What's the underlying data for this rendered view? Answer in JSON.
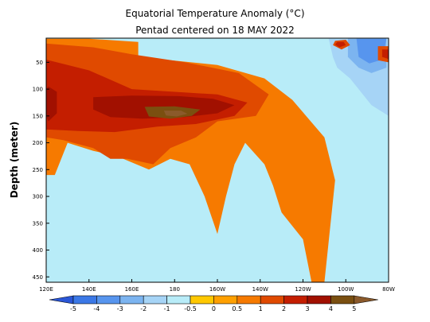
{
  "chart_data": {
    "type": "heatmap",
    "title": "Equatorial Temperature Anomaly (°C)",
    "subtitle": "Pentad centered on 18 MAY 2022",
    "ylabel": "Depth (meter)",
    "xlabel": "",
    "x_ticks": [
      "120E",
      "140E",
      "160E",
      "180",
      "160W",
      "140W",
      "120W",
      "100W",
      "80W"
    ],
    "x_tick_values": [
      120,
      140,
      160,
      180,
      200,
      220,
      240,
      260,
      280
    ],
    "y_ticks": [
      "50",
      "100",
      "150",
      "200",
      "250",
      "300",
      "350",
      "400",
      "450"
    ],
    "y_tick_values": [
      50,
      100,
      150,
      200,
      250,
      300,
      350,
      400,
      450
    ],
    "xlim": [
      120,
      280
    ],
    "ylim": [
      460,
      5
    ],
    "grid": false,
    "colorbar": {
      "labels": [
        "-5",
        "-4",
        "-3",
        "-2",
        "-1",
        "-0.5",
        "0",
        "0.5",
        "1",
        "2",
        "3",
        "4",
        "5"
      ],
      "values": [
        -5,
        -4,
        -3,
        -2,
        -1,
        -0.5,
        0,
        0.5,
        1,
        2,
        3,
        4,
        5
      ],
      "colors": [
        "#2a56d6",
        "#3b78e6",
        "#5795ee",
        "#7cb4f0",
        "#a6d4f6",
        "#b8ecf8",
        "#ffc800",
        "#ffa000",
        "#f67a00",
        "#e04a00",
        "#c41e00",
        "#a11000",
        "#7a4f10",
        "#8b5a2b"
      ]
    },
    "regions": [
      {
        "anomaly": 0.5,
        "polygon": [
          [
            120,
            6
          ],
          [
            140,
            6
          ],
          [
            163,
            12
          ],
          [
            163,
            40
          ],
          [
            200,
            55
          ],
          [
            222,
            80
          ],
          [
            235,
            120
          ],
          [
            250,
            190
          ],
          [
            255,
            270
          ],
          [
            250,
            460
          ],
          [
            244,
            460
          ],
          [
            240,
            380
          ],
          [
            230,
            330
          ],
          [
            226,
            280
          ],
          [
            222,
            240
          ],
          [
            213,
            200
          ],
          [
            208,
            240
          ],
          [
            204,
            300
          ],
          [
            200,
            370
          ],
          [
            194,
            300
          ],
          [
            187,
            240
          ],
          [
            178,
            230
          ],
          [
            168,
            250
          ],
          [
            153,
            225
          ],
          [
            142,
            215
          ],
          [
            130,
            200
          ],
          [
            124,
            260
          ],
          [
            120,
            260
          ]
        ]
      },
      {
        "anomaly": 1,
        "polygon": [
          [
            120,
            15
          ],
          [
            142,
            22
          ],
          [
            160,
            35
          ],
          [
            185,
            50
          ],
          [
            210,
            70
          ],
          [
            224,
            110
          ],
          [
            218,
            150
          ],
          [
            200,
            160
          ],
          [
            190,
            190
          ],
          [
            178,
            210
          ],
          [
            170,
            240
          ],
          [
            158,
            230
          ],
          [
            150,
            230
          ],
          [
            142,
            210
          ],
          [
            128,
            195
          ],
          [
            120,
            190
          ]
        ]
      },
      {
        "anomaly": 2,
        "polygon": [
          [
            120,
            45
          ],
          [
            140,
            65
          ],
          [
            160,
            100
          ],
          [
            180,
            105
          ],
          [
            200,
            110
          ],
          [
            214,
            125
          ],
          [
            208,
            150
          ],
          [
            190,
            165
          ],
          [
            172,
            170
          ],
          [
            152,
            180
          ],
          [
            135,
            178
          ],
          [
            120,
            175
          ]
        ]
      },
      {
        "anomaly": 3,
        "polygon": [
          [
            121,
            95
          ],
          [
            125,
            105
          ],
          [
            125,
            145
          ],
          [
            121,
            160
          ],
          [
            120,
            150
          ],
          [
            120,
            100
          ]
        ]
      },
      {
        "anomaly": 3,
        "polygon": [
          [
            142,
            115
          ],
          [
            160,
            112
          ],
          [
            182,
            113
          ],
          [
            198,
            118
          ],
          [
            208,
            130
          ],
          [
            200,
            145
          ],
          [
            185,
            152
          ],
          [
            165,
            155
          ],
          [
            150,
            152
          ],
          [
            142,
            138
          ]
        ]
      },
      {
        "anomaly": 4,
        "polygon": [
          [
            166,
            133
          ],
          [
            180,
            132
          ],
          [
            192,
            138
          ],
          [
            188,
            150
          ],
          [
            178,
            155
          ],
          [
            168,
            151
          ]
        ]
      },
      {
        "anomaly": 5,
        "polygon": [
          [
            175,
            140
          ],
          [
            183,
            140
          ],
          [
            186,
            146
          ],
          [
            181,
            151
          ],
          [
            176,
            149
          ]
        ]
      },
      {
        "anomaly": -1,
        "polygon": [
          [
            126,
            270
          ],
          [
            131,
            260
          ],
          [
            136,
            300
          ],
          [
            148,
            345
          ],
          [
            160,
            365
          ],
          [
            172,
            400
          ],
          [
            178,
            460
          ],
          [
            126,
            460
          ],
          [
            124,
            400
          ]
        ]
      },
      {
        "anomaly": -1,
        "polygon": [
          [
            176,
            6
          ],
          [
            240,
            6
          ],
          [
            256,
            20
          ],
          [
            256,
            60
          ],
          [
            270,
            80
          ],
          [
            276,
            120
          ],
          [
            279,
            170
          ],
          [
            280,
            300
          ],
          [
            275,
            300
          ],
          [
            266,
            230
          ],
          [
            258,
            180
          ],
          [
            252,
            140
          ],
          [
            246,
            100
          ],
          [
            240,
            80
          ],
          [
            226,
            62
          ],
          [
            210,
            45
          ],
          [
            194,
            30
          ],
          [
            178,
            18
          ]
        ]
      },
      {
        "anomaly": -2,
        "polygon": [
          [
            252,
            6
          ],
          [
            280,
            6
          ],
          [
            280,
            150
          ],
          [
            272,
            130
          ],
          [
            266,
            100
          ],
          [
            262,
            80
          ],
          [
            256,
            60
          ],
          [
            254,
            40
          ]
        ]
      },
      {
        "anomaly": -3,
        "polygon": [
          [
            261,
            6
          ],
          [
            279,
            6
          ],
          [
            279,
            60
          ],
          [
            272,
            70
          ],
          [
            266,
            60
          ],
          [
            261,
            40
          ]
        ]
      },
      {
        "anomaly": -4,
        "polygon": [
          [
            265,
            6
          ],
          [
            279,
            6
          ],
          [
            277,
            45
          ],
          [
            271,
            52
          ],
          [
            266,
            40
          ]
        ]
      },
      {
        "anomaly": 1,
        "polygon": [
          [
            255,
            10
          ],
          [
            260,
            8
          ],
          [
            262,
            18
          ],
          [
            258,
            26
          ],
          [
            254,
            18
          ]
        ]
      },
      {
        "anomaly": 2,
        "polygon": [
          [
            256,
            12
          ],
          [
            259,
            12
          ],
          [
            260,
            18
          ],
          [
            257,
            22
          ],
          [
            255,
            17
          ]
        ]
      },
      {
        "anomaly": 1,
        "polygon": [
          [
            275,
            20
          ],
          [
            280,
            20
          ],
          [
            280,
            50
          ],
          [
            275,
            46
          ]
        ]
      },
      {
        "anomaly": 2,
        "polygon": [
          [
            277,
            26
          ],
          [
            280,
            26
          ],
          [
            280,
            44
          ],
          [
            277,
            40
          ]
        ]
      }
    ]
  }
}
